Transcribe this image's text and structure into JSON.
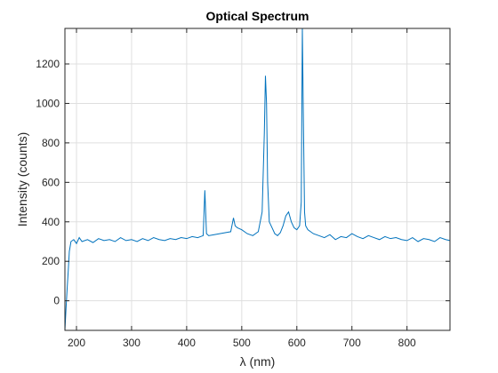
{
  "chart_data": {
    "type": "line",
    "title": "Optical Spectrum",
    "xlabel": "λ (nm)",
    "ylabel": "Intensity (counts)",
    "xlim": [
      179,
      878
    ],
    "ylim": [
      -150,
      1380
    ],
    "xticks": [
      200,
      300,
      400,
      500,
      600,
      700,
      800
    ],
    "yticks": [
      0,
      200,
      400,
      600,
      800,
      1000,
      1200
    ],
    "grid": true,
    "line_color": "#0072BD",
    "series": [
      {
        "x": [
          179,
          181,
          183,
          185,
          187,
          190,
          195,
          200,
          205,
          210,
          220,
          230,
          240,
          250,
          260,
          270,
          280,
          290,
          300,
          310,
          320,
          330,
          340,
          350,
          360,
          370,
          380,
          390,
          400,
          410,
          420,
          430,
          433,
          436,
          440,
          450,
          460,
          470,
          480,
          485,
          488,
          492,
          500,
          510,
          520,
          530,
          537,
          541,
          543,
          545,
          547,
          550,
          555,
          560,
          565,
          570,
          575,
          580,
          585,
          590,
          595,
          600,
          605,
          608,
          610,
          612,
          614,
          616,
          620,
          625,
          630,
          640,
          650,
          660,
          670,
          680,
          690,
          700,
          710,
          720,
          730,
          740,
          750,
          760,
          770,
          780,
          790,
          800,
          810,
          820,
          830,
          840,
          850,
          860,
          870,
          878
        ],
        "y": [
          -150,
          -40,
          60,
          150,
          250,
          300,
          310,
          290,
          320,
          300,
          310,
          295,
          315,
          305,
          310,
          300,
          320,
          305,
          310,
          300,
          315,
          305,
          320,
          310,
          305,
          315,
          310,
          320,
          315,
          325,
          320,
          330,
          560,
          340,
          330,
          335,
          340,
          345,
          350,
          420,
          380,
          370,
          360,
          340,
          330,
          350,
          450,
          850,
          1140,
          1000,
          600,
          400,
          370,
          340,
          330,
          345,
          380,
          430,
          450,
          400,
          370,
          360,
          380,
          500,
          1380,
          900,
          450,
          380,
          360,
          350,
          340,
          330,
          320,
          335,
          310,
          325,
          320,
          340,
          325,
          315,
          330,
          320,
          310,
          325,
          315,
          320,
          310,
          305,
          320,
          300,
          315,
          310,
          300,
          320,
          310,
          305
        ]
      }
    ]
  }
}
